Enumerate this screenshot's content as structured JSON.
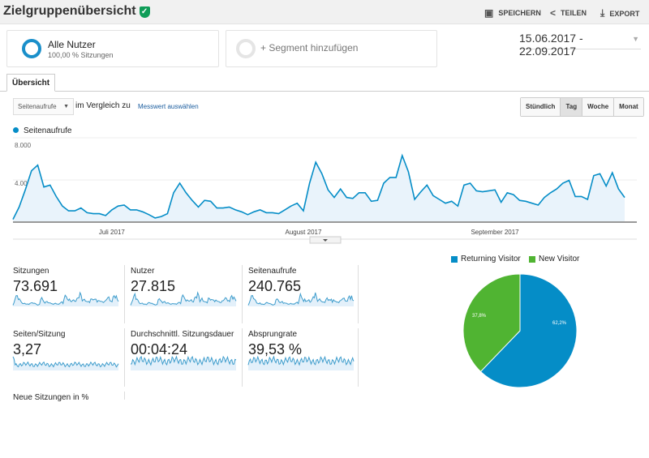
{
  "header": {
    "title": "Zielgruppenübersicht",
    "verified_icon": "check-shield-icon",
    "actions": [
      {
        "label": "SPEICHERN",
        "icon": "save-icon"
      },
      {
        "label": "TEILEN",
        "icon": "share-icon"
      },
      {
        "label": "EXPORT",
        "icon": "export-icon"
      }
    ]
  },
  "segments": [
    {
      "name": "Alle Nutzer",
      "sub": "100,00 % Sitzungen"
    },
    {
      "name": "+ Segment hinzufügen"
    }
  ],
  "date_range": "15.06.2017 - 22.09.2017",
  "tabs": [
    {
      "label": "Übersicht"
    }
  ],
  "controls": {
    "metric_select": "Seitenaufrufe",
    "compare_text": "im Vergleich zu",
    "compare_link": "Messwert auswählen",
    "granularity": [
      "Stündlich",
      "Tag",
      "Woche",
      "Monat"
    ],
    "active_granularity": "Tag"
  },
  "colors": {
    "accent": "#058dc7",
    "returning": "#058dc7",
    "new": "#50b432",
    "fill": "#e9f3fb"
  },
  "chart_data": [
    {
      "type": "area",
      "legend": "Seitenaufrufe",
      "start_date": "15.06.2017",
      "end_date": "22.09.2017",
      "yticks": [
        "8.000",
        "4.000"
      ],
      "ylim": [
        0,
        8000
      ],
      "xticks": [
        {
          "label": "Juli 2017",
          "day_index": 16
        },
        {
          "label": "August 2017",
          "day_index": 47
        },
        {
          "label": "September 2017",
          "day_index": 78
        }
      ],
      "values": [
        200,
        1500,
        3300,
        5300,
        5900,
        3600,
        3800,
        2600,
        1600,
        1100,
        1100,
        1400,
        900,
        800,
        800,
        600,
        1200,
        1600,
        1700,
        1200,
        1200,
        1000,
        700,
        350,
        500,
        800,
        3000,
        4000,
        3000,
        2200,
        1500,
        2200,
        2100,
        1400,
        1400,
        1500,
        1200,
        1000,
        700,
        1000,
        1200,
        900,
        900,
        800,
        1200,
        1600,
        1900,
        1100,
        4000,
        6200,
        5000,
        3300,
        2500,
        3400,
        2500,
        2400,
        3000,
        3000,
        2100,
        2200,
        4000,
        4600,
        4600,
        6900,
        5200,
        2300,
        3100,
        3800,
        2700,
        2300,
        1900,
        2100,
        1600,
        3800,
        4000,
        3200,
        3100,
        3200,
        3300,
        2000,
        3000,
        2800,
        2200,
        2100,
        1900,
        1700,
        2500,
        3000,
        3400,
        4000,
        4300,
        2600,
        2600,
        2300,
        4800,
        5000,
        3700,
        5100,
        3400,
        2500
      ]
    },
    {
      "type": "pie",
      "legend_position": "top",
      "slices": [
        {
          "name": "Returning Visitor",
          "value": 62.2,
          "label": "62,2%"
        },
        {
          "name": "New Visitor",
          "value": 37.8,
          "label": "37,8%"
        }
      ]
    }
  ],
  "metrics": [
    {
      "label": "Sitzungen",
      "value": "73.691"
    },
    {
      "label": "Nutzer",
      "value": "27.815"
    },
    {
      "label": "Seitenaufrufe",
      "value": "240.765"
    },
    {
      "label": "Seiten/Sitzung",
      "value": "3,27"
    },
    {
      "label": "Durchschnittl. Sitzungsdauer",
      "value": "00:04:24"
    },
    {
      "label": "Absprungrate",
      "value": "39,53 %"
    },
    {
      "label": "Neue Sitzungen in %",
      "value": ""
    }
  ]
}
